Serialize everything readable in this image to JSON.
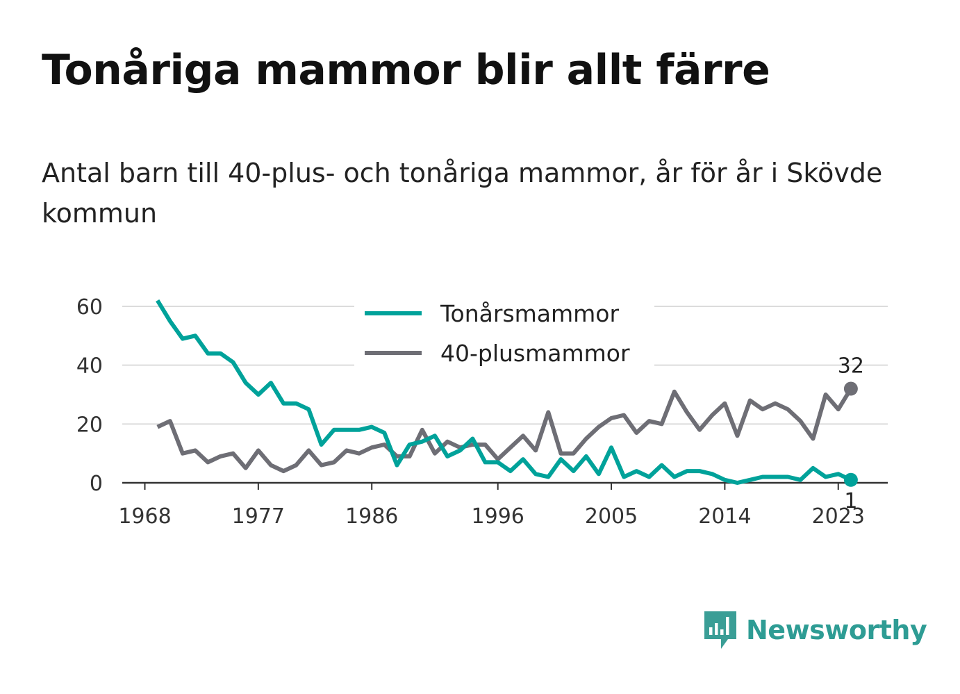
{
  "title": "Tonåriga mammor blir allt färre",
  "subtitle": "Antal barn till 40-plus- och tonåriga mammor, år för år i Skövde kommun",
  "brand": {
    "name": "Newsworthy",
    "icon": "newsworthy-logo-icon",
    "color": "#3a9e96"
  },
  "chart_data": {
    "type": "line",
    "x_start": 1969,
    "x_end": 2024,
    "x_ticks": [
      "1968",
      "1977",
      "1986",
      "1996",
      "2005",
      "2014",
      "2023"
    ],
    "y_ticks": [
      "0",
      "20",
      "40",
      "60"
    ],
    "ylim": [
      0,
      60
    ],
    "grid": true,
    "legend": "top-center",
    "series": [
      {
        "name": "Tonårsmammor",
        "color": "#00a29a",
        "values": [
          62,
          55,
          49,
          50,
          44,
          44,
          41,
          34,
          30,
          34,
          27,
          27,
          25,
          13,
          18,
          18,
          18,
          19,
          17,
          6,
          13,
          14,
          16,
          9,
          11,
          15,
          7,
          7,
          4,
          8,
          3,
          2,
          8,
          4,
          9,
          3,
          12,
          2,
          4,
          2,
          6,
          2,
          4,
          4,
          3,
          1,
          0,
          1,
          2,
          2,
          2,
          1,
          5,
          2,
          3,
          1
        ],
        "end_label": "1"
      },
      {
        "name": "40-plusmammor",
        "color": "#6e6e75",
        "values": [
          19,
          21,
          10,
          11,
          7,
          9,
          10,
          5,
          11,
          6,
          4,
          6,
          11,
          6,
          7,
          11,
          10,
          12,
          13,
          9,
          9,
          18,
          10,
          14,
          12,
          13,
          13,
          8,
          12,
          16,
          11,
          24,
          10,
          10,
          15,
          19,
          22,
          23,
          17,
          21,
          20,
          31,
          24,
          18,
          23,
          27,
          16,
          28,
          25,
          27,
          25,
          21,
          15,
          30,
          25,
          32
        ],
        "end_label": "32"
      }
    ]
  }
}
